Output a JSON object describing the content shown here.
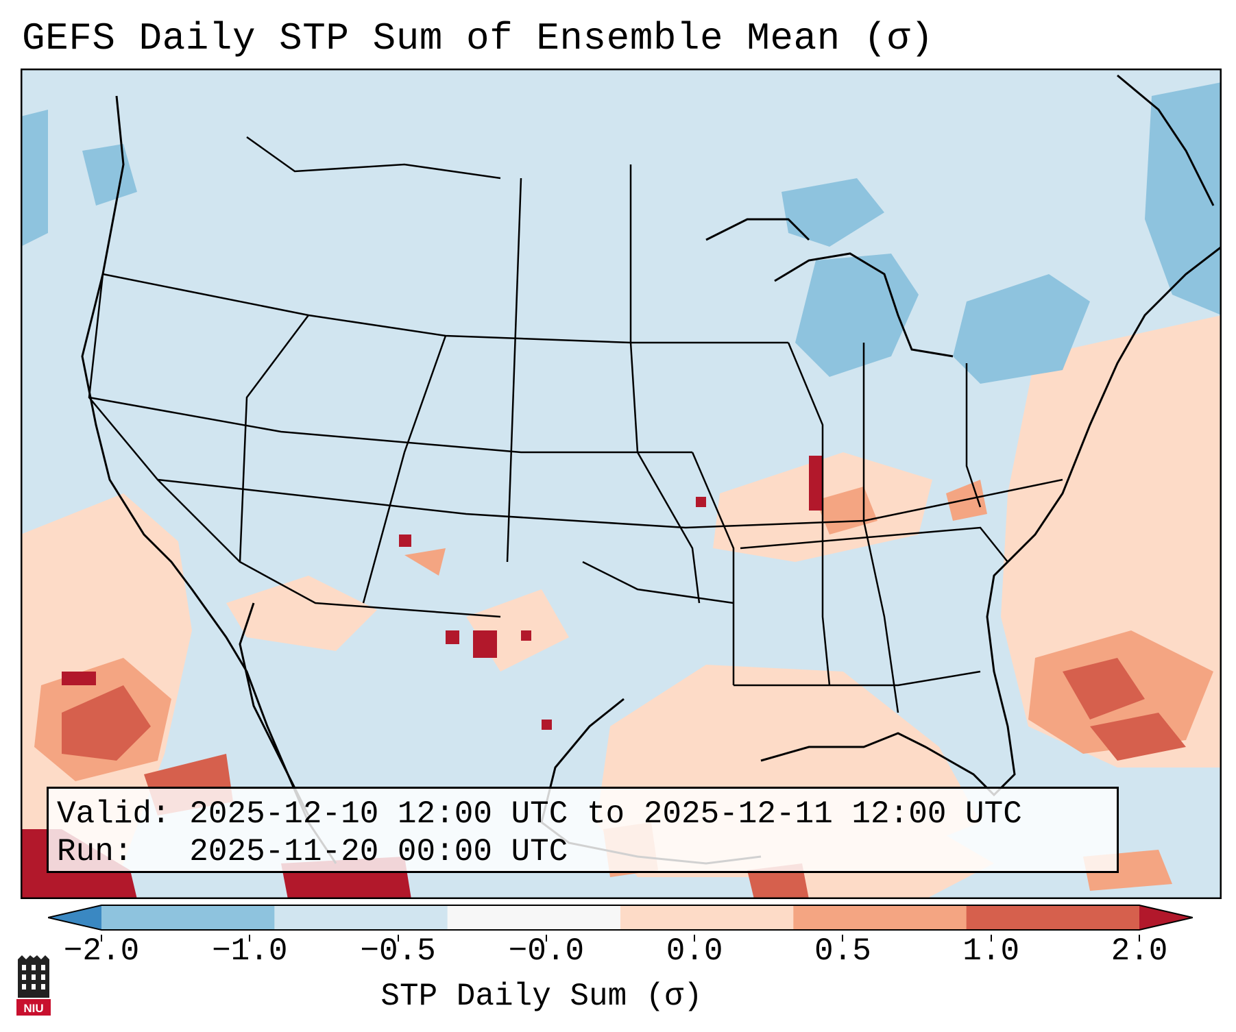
{
  "title": "GEFS Daily STP Sum of Ensemble Mean (σ)",
  "info": {
    "valid_label": "Valid:",
    "valid_value": "2025-12-10 12:00 UTC to 2025-12-11 12:00 UTC",
    "run_label": "Run:",
    "run_value": "2025-11-20 00:00 UTC"
  },
  "colorbar": {
    "label": "STP Daily Sum (σ)",
    "ticks": [
      "−2.0",
      "−1.0",
      "−0.5",
      "−0.0",
      "0.0",
      "0.5",
      "1.0",
      "2.0"
    ],
    "colors": [
      "#3a88c2",
      "#8ec3de",
      "#d1e5f0",
      "#f7f7f7",
      "#fddbc7",
      "#f4a582",
      "#d6604d",
      "#b2182b"
    ],
    "extend": "both"
  },
  "logo": {
    "text": "NIU"
  },
  "colors": {
    "ocean_background": "#d1e5f0",
    "border": "#000000"
  }
}
